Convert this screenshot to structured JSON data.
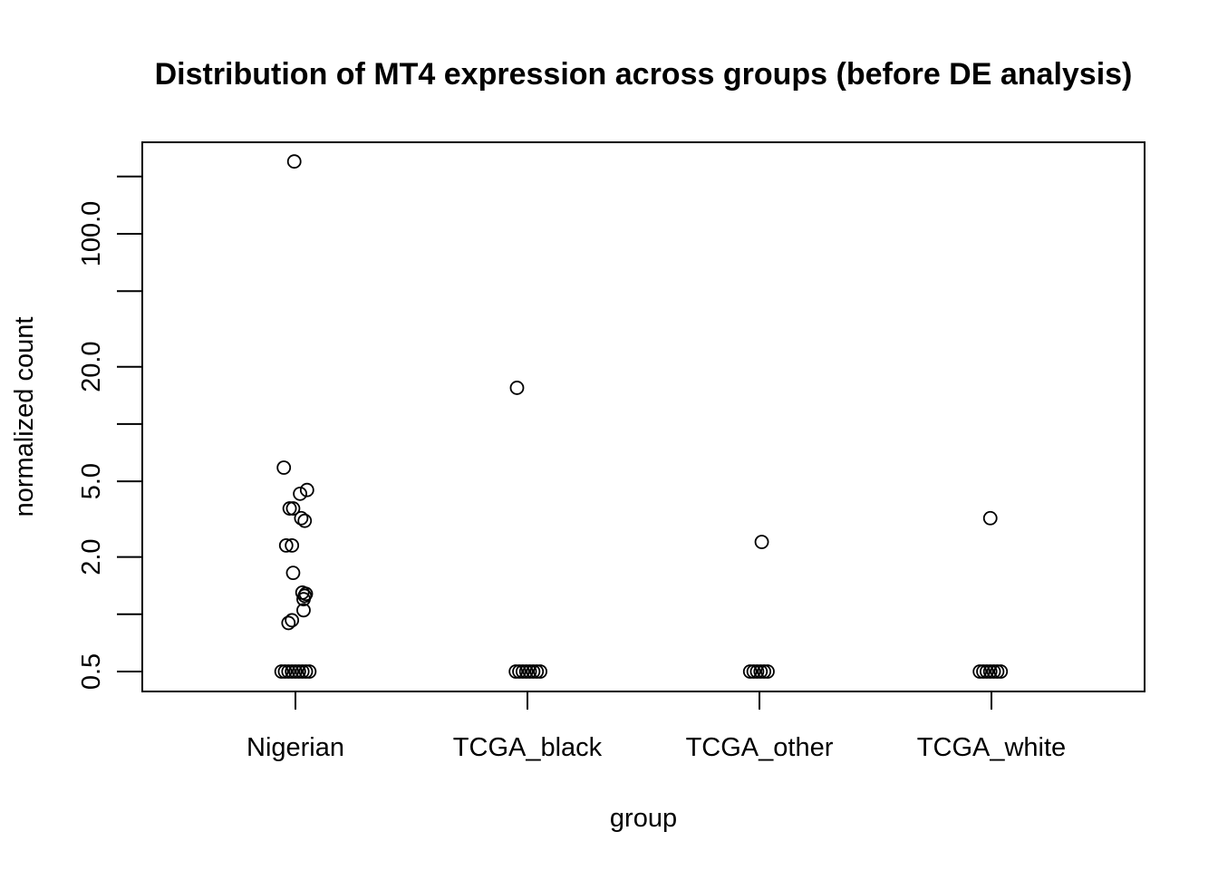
{
  "chart_data": {
    "type": "scatter",
    "title": "Distribution of MT4 expression across groups (before DE analysis)",
    "xlabel": "group",
    "ylabel": "normalized count",
    "y_scale": "log",
    "ylim": [
      0.45,
      280
    ],
    "categories": [
      "Nigerian",
      "TCGA_black",
      "TCGA_other",
      "TCGA_white"
    ],
    "y_ticks": [
      0.5,
      1,
      2,
      5,
      10,
      20,
      50,
      100,
      200
    ],
    "y_tick_labels": [
      "0.5",
      "",
      "2.0",
      "5.0",
      "",
      "20.0",
      "",
      "100.0",
      ""
    ],
    "grid": false,
    "legend": "none",
    "marker": "open-circle",
    "colors": {
      "marker_stroke": "#000000",
      "frame": "#000000",
      "background": "#ffffff"
    },
    "series": [
      {
        "group": "Nigerian",
        "points": [
          {
            "offset": -0.005,
            "y": 240
          },
          {
            "offset": -0.05,
            "y": 5.9
          },
          {
            "offset": 0.05,
            "y": 4.5
          },
          {
            "offset": 0.02,
            "y": 4.3
          },
          {
            "offset": -0.025,
            "y": 3.6
          },
          {
            "offset": -0.01,
            "y": 3.6
          },
          {
            "offset": 0.025,
            "y": 3.2
          },
          {
            "offset": 0.04,
            "y": 3.1
          },
          {
            "offset": -0.04,
            "y": 2.3
          },
          {
            "offset": -0.015,
            "y": 2.3
          },
          {
            "offset": -0.01,
            "y": 1.65
          },
          {
            "offset": 0.03,
            "y": 1.3
          },
          {
            "offset": 0.04,
            "y": 1.25
          },
          {
            "offset": 0.045,
            "y": 1.28
          },
          {
            "offset": 0.035,
            "y": 1.2
          },
          {
            "offset": 0.035,
            "y": 1.05
          },
          {
            "offset": -0.015,
            "y": 0.93
          },
          {
            "offset": -0.03,
            "y": 0.9
          },
          {
            "offset": -0.06,
            "y": 0.5
          },
          {
            "offset": -0.045,
            "y": 0.5
          },
          {
            "offset": -0.03,
            "y": 0.5
          },
          {
            "offset": -0.015,
            "y": 0.5
          },
          {
            "offset": 0.0,
            "y": 0.5
          },
          {
            "offset": 0.015,
            "y": 0.5
          },
          {
            "offset": 0.03,
            "y": 0.5
          },
          {
            "offset": 0.045,
            "y": 0.5
          },
          {
            "offset": 0.06,
            "y": 0.5
          }
        ]
      },
      {
        "group": "TCGA_black",
        "points": [
          {
            "offset": -0.045,
            "y": 15.5
          },
          {
            "offset": -0.05,
            "y": 0.5
          },
          {
            "offset": -0.035,
            "y": 0.5
          },
          {
            "offset": -0.02,
            "y": 0.5
          },
          {
            "offset": -0.005,
            "y": 0.5
          },
          {
            "offset": 0.01,
            "y": 0.5
          },
          {
            "offset": 0.025,
            "y": 0.5
          },
          {
            "offset": 0.04,
            "y": 0.5
          },
          {
            "offset": 0.055,
            "y": 0.5
          }
        ]
      },
      {
        "group": "TCGA_other",
        "points": [
          {
            "offset": 0.01,
            "y": 2.4
          },
          {
            "offset": -0.04,
            "y": 0.5
          },
          {
            "offset": -0.025,
            "y": 0.5
          },
          {
            "offset": -0.01,
            "y": 0.5
          },
          {
            "offset": 0.005,
            "y": 0.5
          },
          {
            "offset": 0.02,
            "y": 0.5
          },
          {
            "offset": 0.035,
            "y": 0.5
          }
        ]
      },
      {
        "group": "TCGA_white",
        "points": [
          {
            "offset": -0.005,
            "y": 3.2
          },
          {
            "offset": -0.05,
            "y": 0.5
          },
          {
            "offset": -0.035,
            "y": 0.5
          },
          {
            "offset": -0.02,
            "y": 0.5
          },
          {
            "offset": -0.005,
            "y": 0.5
          },
          {
            "offset": 0.01,
            "y": 0.5
          },
          {
            "offset": 0.025,
            "y": 0.5
          },
          {
            "offset": 0.04,
            "y": 0.5
          }
        ]
      }
    ]
  }
}
